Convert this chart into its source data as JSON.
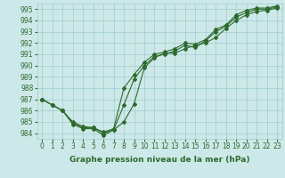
{
  "x": [
    0,
    1,
    2,
    3,
    4,
    5,
    6,
    7,
    8,
    9,
    10,
    11,
    12,
    13,
    14,
    15,
    16,
    17,
    18,
    19,
    20,
    21,
    22,
    23
  ],
  "line1": [
    987.0,
    986.5,
    986.0,
    984.8,
    984.4,
    984.4,
    983.8,
    984.3,
    985.0,
    986.6,
    989.8,
    990.7,
    991.1,
    991.1,
    991.5,
    991.8,
    992.0,
    992.5,
    993.3,
    994.0,
    994.5,
    994.8,
    994.9,
    995.1
  ],
  "line2": [
    987.0,
    986.5,
    986.0,
    984.9,
    984.5,
    984.5,
    984.0,
    984.3,
    986.5,
    988.8,
    990.0,
    990.8,
    991.0,
    991.3,
    991.8,
    991.6,
    992.2,
    993.0,
    993.5,
    994.3,
    994.7,
    995.0,
    995.0,
    995.2
  ],
  "line3": [
    987.0,
    986.5,
    986.0,
    985.0,
    984.6,
    984.5,
    984.1,
    984.4,
    988.0,
    989.2,
    990.3,
    991.0,
    991.2,
    991.5,
    992.0,
    991.9,
    992.3,
    993.2,
    993.6,
    994.5,
    994.9,
    995.1,
    995.1,
    995.3
  ],
  "line_color": "#2d6a2d",
  "bg_color": "#cde8e8",
  "grid_color": "#9ecece",
  "xlabel": "Graphe pression niveau de la mer (hPa)",
  "ylim": [
    983.5,
    995.5
  ],
  "xlim": [
    -0.5,
    23.5
  ],
  "yticks": [
    984,
    985,
    986,
    987,
    988,
    989,
    990,
    991,
    992,
    993,
    994,
    995
  ],
  "xticks": [
    0,
    1,
    2,
    3,
    4,
    5,
    6,
    7,
    8,
    9,
    10,
    11,
    12,
    13,
    14,
    15,
    16,
    17,
    18,
    19,
    20,
    21,
    22,
    23
  ],
  "tick_labelsize": 5.5,
  "xlabel_fontsize": 6.5
}
